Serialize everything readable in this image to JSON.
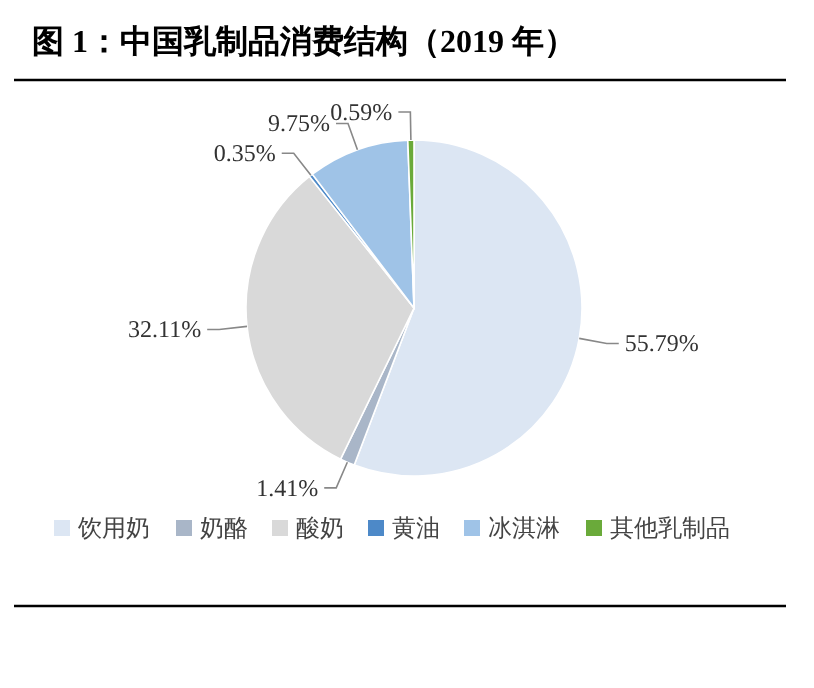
{
  "chart_data": {
    "type": "pie",
    "title": "图 1：中国乳制品消费结构（2019 年）",
    "categories": [
      "饮用奶",
      "奶酪",
      "酸奶",
      "黄油",
      "冰淇淋",
      "其他乳制品"
    ],
    "values": [
      55.79,
      1.41,
      32.11,
      0.35,
      9.75,
      0.59
    ],
    "colors": [
      "#dce6f3",
      "#a9b6c8",
      "#d9d9d9",
      "#4d89c8",
      "#9fc3e7",
      "#6aaa3a"
    ],
    "value_labels": [
      "55.79%",
      "1.41%",
      "32.11%",
      "0.35%",
      "9.75%",
      "0.59%"
    ],
    "legend": "bottom"
  }
}
